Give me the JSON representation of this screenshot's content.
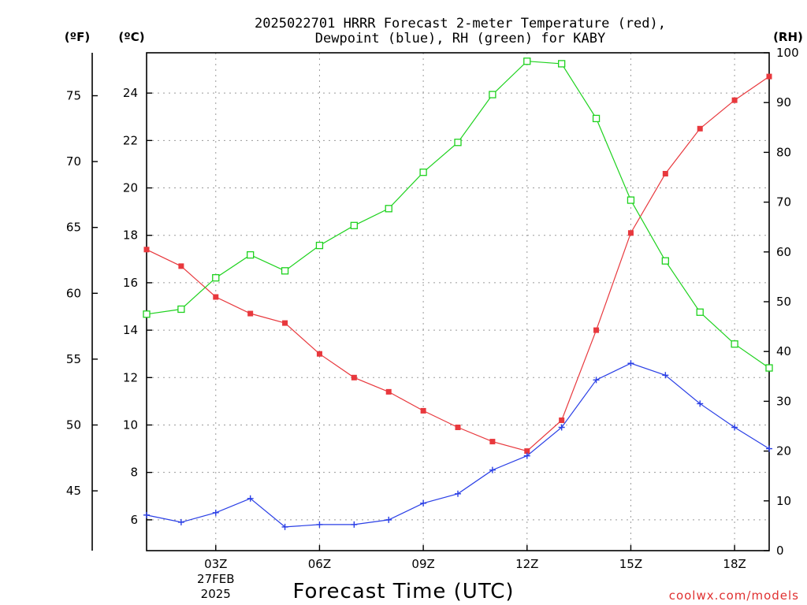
{
  "title_line1": "2025022701 HRRR Forecast 2-meter Temperature (red),",
  "title_line2": "Dewpoint (blue), RH (green) for KABY",
  "unit_f": "(ºF)",
  "unit_c": "(ºC)",
  "unit_rh": "(RH)",
  "credit": "coolwx.com/models",
  "chart_data": {
    "type": "line",
    "title": "2025022701 HRRR Forecast 2-meter Temperature (red), Dewpoint (blue), RH (green) for KABY",
    "xlabel": "Forecast Time (UTC)",
    "x_hours": [
      1,
      2,
      3,
      4,
      5,
      6,
      7,
      8,
      9,
      10,
      11,
      12,
      13,
      14,
      15,
      16,
      17,
      18,
      19
    ],
    "xlim": [
      1,
      19
    ],
    "x_ticks": [
      {
        "hour": 3,
        "label": "03Z",
        "label2": "27FEB",
        "label3": "2025"
      },
      {
        "hour": 6,
        "label": "06Z"
      },
      {
        "hour": 9,
        "label": "09Z"
      },
      {
        "hour": 12,
        "label": "12Z"
      },
      {
        "hour": 15,
        "label": "15Z"
      },
      {
        "hour": 18,
        "label": "18Z"
      }
    ],
    "y_celsius": {
      "label": "(ºC)",
      "lim": [
        4.7,
        25.7
      ],
      "ticks": [
        6,
        8,
        10,
        12,
        14,
        16,
        18,
        20,
        22,
        24
      ]
    },
    "y_fahrenheit": {
      "label": "(ºF)",
      "ticks": [
        45,
        50,
        55,
        60,
        65,
        70,
        75
      ]
    },
    "y_rh": {
      "label": "(RH)",
      "lim": [
        0,
        100
      ],
      "ticks": [
        0,
        10,
        20,
        30,
        40,
        50,
        60,
        70,
        80,
        90,
        100
      ]
    },
    "grid": true,
    "series": [
      {
        "name": "Temperature",
        "color": "#e8383d",
        "marker": "filled-square",
        "axis": "celsius",
        "values": [
          17.4,
          16.7,
          15.4,
          14.7,
          14.3,
          13.0,
          12.0,
          11.4,
          10.6,
          9.9,
          9.3,
          8.9,
          10.2,
          14.0,
          18.1,
          20.6,
          22.5,
          23.7,
          24.7
        ]
      },
      {
        "name": "Dewpoint",
        "color": "#2a3fe6",
        "marker": "plus",
        "axis": "celsius",
        "values": [
          6.2,
          5.9,
          6.3,
          6.9,
          5.7,
          5.8,
          5.8,
          6.0,
          6.7,
          7.1,
          8.1,
          8.7,
          9.9,
          11.9,
          12.6,
          12.1,
          10.9,
          9.9,
          9.0
        ]
      },
      {
        "name": "RH",
        "color": "#1ed21e",
        "marker": "open-square",
        "axis": "rh",
        "values": [
          47.5,
          48.5,
          54.8,
          59.4,
          56.2,
          61.3,
          65.3,
          68.7,
          76.0,
          82.0,
          91.6,
          98.3,
          97.8,
          86.8,
          70.4,
          58.2,
          47.9,
          41.5,
          36.7
        ]
      }
    ]
  }
}
